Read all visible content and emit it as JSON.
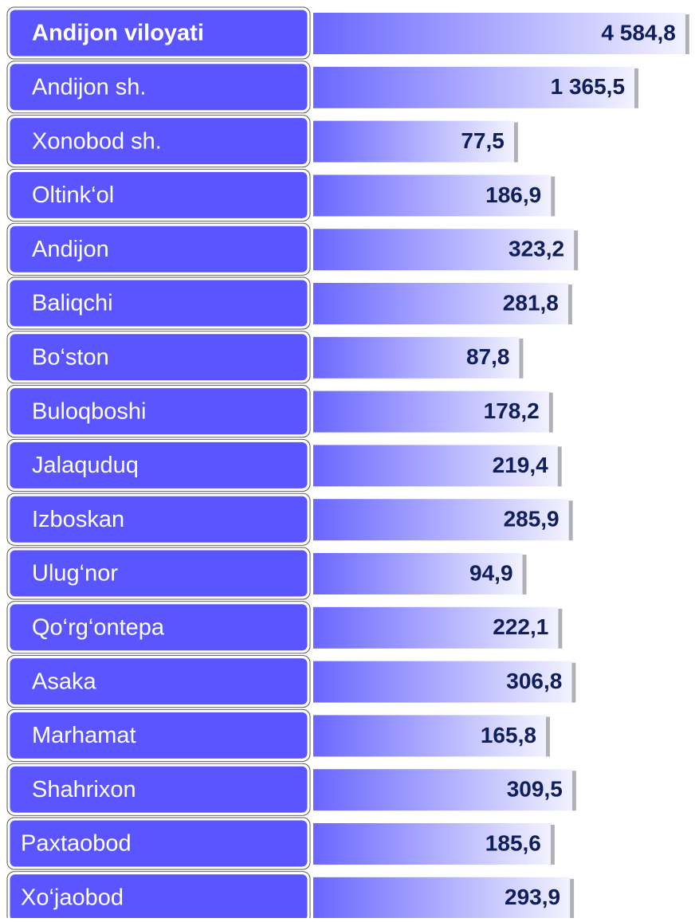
{
  "chart_data": {
    "type": "bar",
    "orientation": "horizontal",
    "log_scale": true,
    "xlim": [
      0.65,
      4600
    ],
    "color": "#5a55ff",
    "categories": [
      "Andijon viloyati",
      "Andijon  sh.",
      "Xonobod sh.",
      "Oltink‘ol",
      "Andijon",
      "Baliqchi",
      "Bo‘ston",
      "Buloqboshi",
      "Jalaquduq",
      "Izboskan",
      "Ulug‘nor",
      "Qo‘rg‘ontepa",
      "Asaka",
      "Marhamat",
      "Shahrixon",
      "Paxtaobod",
      "Xo‘jaobod"
    ],
    "values": [
      4584.8,
      1365.5,
      77.5,
      186.9,
      323.2,
      281.8,
      87.8,
      178.2,
      219.4,
      285.9,
      94.9,
      222.1,
      306.8,
      165.8,
      309.5,
      185.6,
      293.9
    ],
    "value_labels": [
      "4 584,8",
      "1 365,5",
      "77,5",
      "186,9",
      "323,2",
      "281,8",
      "87,8",
      "178,2",
      "219,4",
      "285,9",
      "94,9",
      "222,1",
      "306,8",
      "165,8",
      "309,5",
      "185,6",
      "293,9"
    ]
  }
}
